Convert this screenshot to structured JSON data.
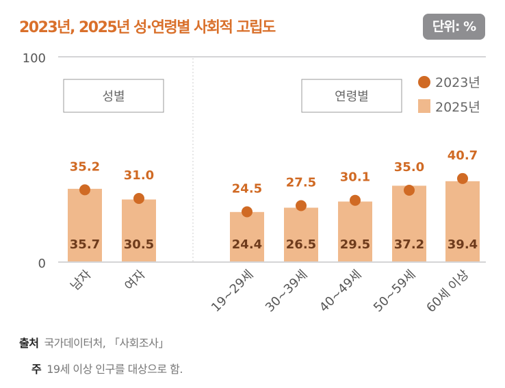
{
  "chart_data": {
    "type": "bar",
    "title": "2023년, 2025년 성·연령별 사회적 고립도",
    "unit_badge": "단위: %",
    "ylim": [
      0,
      100
    ],
    "y_ticks": [
      "0",
      "100"
    ],
    "groups": [
      {
        "label": "성별",
        "categories": [
          "남자",
          "여자"
        ]
      },
      {
        "label": "연령별",
        "categories": [
          "19~29세",
          "30~39세",
          "40~49세",
          "50~59세",
          "60세 이상"
        ]
      }
    ],
    "categories": [
      "남자",
      "여자",
      "19~29세",
      "30~39세",
      "40~49세",
      "50~59세",
      "60세 이상"
    ],
    "series": [
      {
        "name": "2023년",
        "mark": "dot",
        "color": "#d06a24",
        "values": [
          35.2,
          31.0,
          24.5,
          27.5,
          30.1,
          35.0,
          40.7
        ]
      },
      {
        "name": "2025년",
        "mark": "bar",
        "color": "#f0b98c",
        "values": [
          35.7,
          30.5,
          24.4,
          26.5,
          29.5,
          37.2,
          39.4
        ]
      }
    ],
    "legend": "top-right",
    "grid": false
  },
  "footer": {
    "source_label": "출처",
    "source_text": "국가데이터처, 「사회조사」",
    "note_label": "주",
    "note_text": "19세 이상 인구를 대상으로 함."
  }
}
